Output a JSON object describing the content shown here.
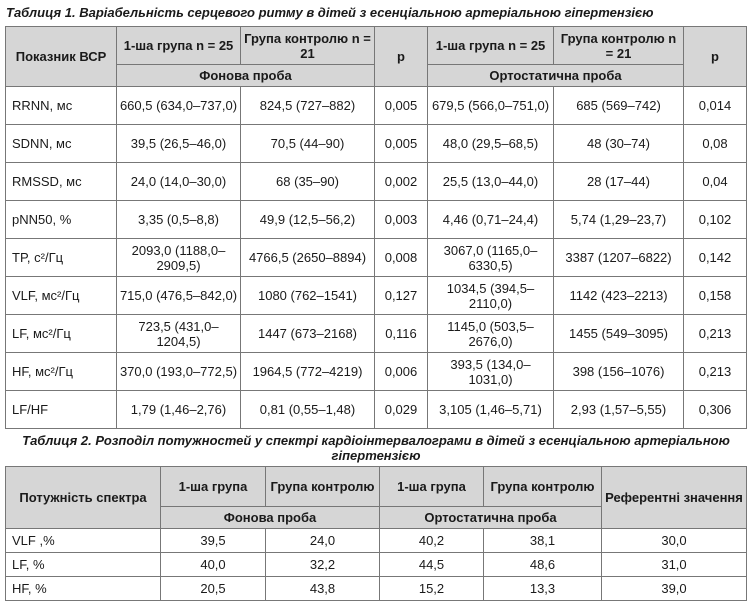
{
  "table1": {
    "caption": "Таблиця 1. Варіабельність серцевого ритму в дітей з есенціальною артеріальною гіпертензією",
    "header": {
      "indicator": "Показник ВСР",
      "group1": "1-ша група n = 25",
      "control": "Група контролю n = 21",
      "p": "р",
      "background": "Фонова проба",
      "orthostatic": "Ортостатична проба"
    },
    "rows": [
      {
        "name": "RRNN, мс",
        "g1": "660,5 (634,0–737,0)",
        "c": "824,5 (727–882)",
        "p1": "0,005",
        "o1": "679,5 (566,0–751,0)",
        "oc": "685 (569–742)",
        "p2": "0,014"
      },
      {
        "name": "SDNN, мс",
        "g1": "39,5 (26,5–46,0)",
        "c": "70,5 (44–90)",
        "p1": "0,005",
        "o1": "48,0 (29,5–68,5)",
        "oc": "48 (30–74)",
        "p2": "0,08"
      },
      {
        "name": "RMSSD, мс",
        "g1": "24,0 (14,0–30,0)",
        "c": "68 (35–90)",
        "p1": "0,002",
        "o1": "25,5 (13,0–44,0)",
        "oc": "28 (17–44)",
        "p2": "0,04"
      },
      {
        "name": "pNN50, %",
        "g1": "3,35 (0,5–8,8)",
        "c": "49,9 (12,5–56,2)",
        "p1": "0,003",
        "o1": "4,46 (0,71–24,4)",
        "oc": "5,74 (1,29–23,7)",
        "p2": "0,102"
      },
      {
        "name": "TP, с²/Гц",
        "g1": "2093,0 (1188,0–2909,5)",
        "c": "4766,5 (2650–8894)",
        "p1": "0,008",
        "o1": "3067,0 (1165,0–6330,5)",
        "oc": "3387 (1207–6822)",
        "p2": "0,142"
      },
      {
        "name": "VLF, мс²/Гц",
        "g1": "715,0 (476,5–842,0)",
        "c": "1080 (762–1541)",
        "p1": "0,127",
        "o1": "1034,5 (394,5–2110,0)",
        "oc": "1142 (423–2213)",
        "p2": "0,158"
      },
      {
        "name": "LF, мс²/Гц",
        "g1": "723,5 (431,0–1204,5)",
        "c": "1447 (673–2168)",
        "p1": "0,116",
        "o1": "1145,0 (503,5–2676,0)",
        "oc": "1455 (549–3095)",
        "p2": "0,213"
      },
      {
        "name": "HF, мс²/Гц",
        "g1": "370,0 (193,0–772,5)",
        "c": "1964,5 (772–4219)",
        "p1": "0,006",
        "o1": "393,5 (134,0–1031,0)",
        "oc": "398 (156–1076)",
        "p2": "0,213"
      },
      {
        "name": "LF/HF",
        "g1": "1,79 (1,46–2,76)",
        "c": "0,81 (0,55–1,48)",
        "p1": "0,029",
        "o1": "3,105 (1,46–5,71)",
        "oc": "2,93 (1,57–5,55)",
        "p2": "0,306"
      }
    ]
  },
  "table2": {
    "caption": "Таблиця 2. Розподіл потужностей у спектрі кардіоінтервалограми в дітей з есенціальною артеріальною гіпертензією",
    "header": {
      "power": "Потужність спектра",
      "group1": "1-ша група",
      "control": "Група контролю",
      "group1b": "1-ша група",
      "controlb": "Група контролю",
      "reference": "Референтні значення",
      "background": "Фонова проба",
      "orthostatic": "Ортостатична проба"
    },
    "rows": [
      {
        "name": "VLF ,%",
        "g1": "39,5",
        "c": "24,0",
        "o1": "40,2",
        "oc": "38,1",
        "ref": "30,0"
      },
      {
        "name": "LF, %",
        "g1": "40,0",
        "c": "32,2",
        "o1": "44,5",
        "oc": "48,6",
        "ref": "31,0"
      },
      {
        "name": "HF, %",
        "g1": "20,5",
        "c": "43,8",
        "o1": "15,2",
        "oc": "13,3",
        "ref": "39,0"
      }
    ]
  }
}
